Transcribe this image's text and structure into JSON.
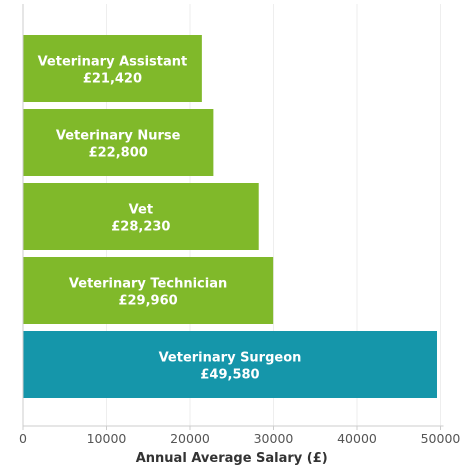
{
  "chart_data": {
    "type": "bar",
    "orientation": "horizontal",
    "categories": [
      "Veterinary Assistant",
      "Veterinary Nurse",
      "Vet",
      "Veterinary Technician",
      "Veterinary Surgeon"
    ],
    "value_labels": [
      "£21,420",
      "£22,800",
      "£28,230",
      "£29,960",
      "£49,580"
    ],
    "values": [
      21420,
      22800,
      28230,
      29960,
      49580
    ],
    "highlight_index": 4,
    "xlabel": "Annual Average Salary (£)",
    "ylabel": "",
    "xlim": [
      0,
      50000
    ],
    "xticks": [
      0,
      10000,
      20000,
      30000,
      40000,
      50000
    ],
    "xtick_labels": [
      "0",
      "10000",
      "20000",
      "30000",
      "40000",
      "50000"
    ],
    "grid": true,
    "colors": {
      "bar": "#80b92a",
      "highlight": "#1596aa",
      "grid": "#eeeeee",
      "axis": "#cccccc"
    }
  }
}
